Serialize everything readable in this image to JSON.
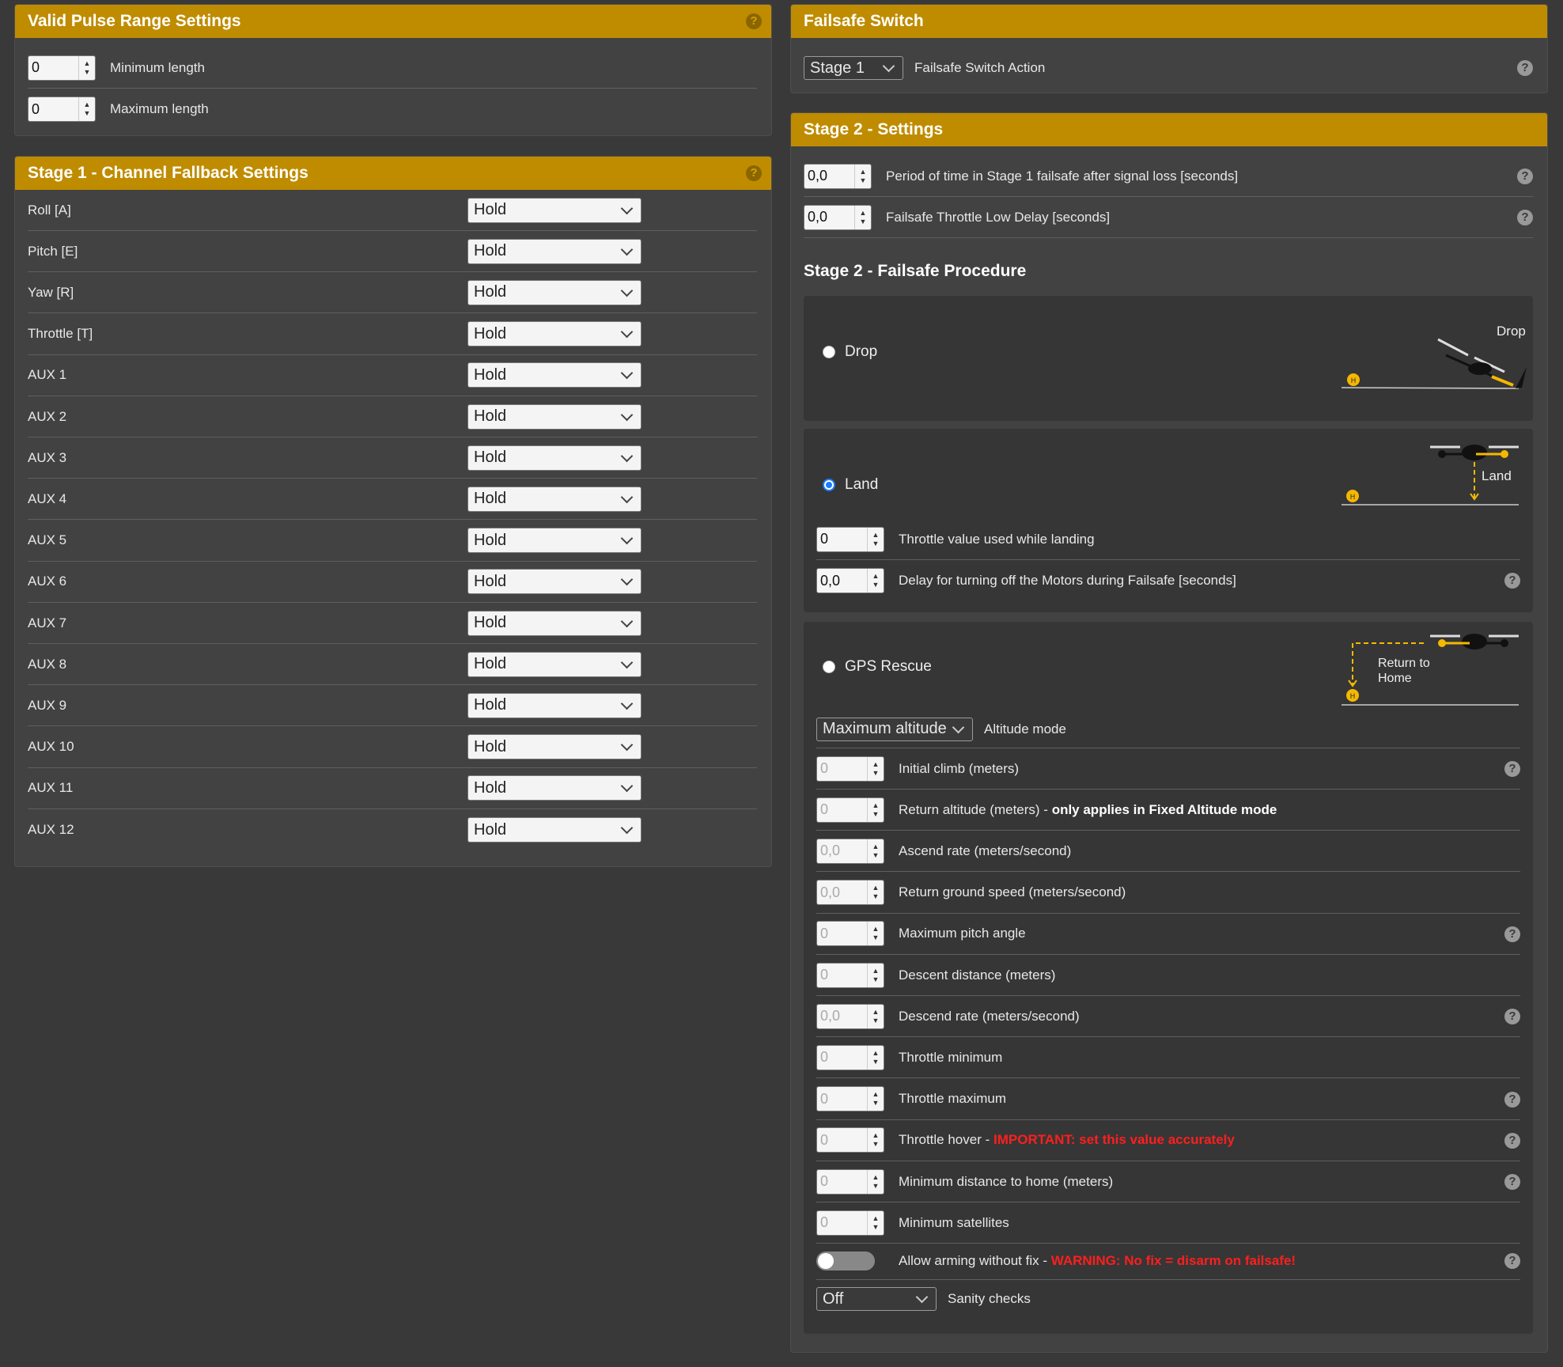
{
  "pulse_range": {
    "title": "Valid Pulse Range Settings",
    "min": {
      "value": "0",
      "label": "Minimum length"
    },
    "max": {
      "value": "0",
      "label": "Maximum length"
    }
  },
  "stage1": {
    "title": "Stage 1 - Channel Fallback Settings",
    "channels": [
      {
        "label": "Roll [A]",
        "value": "Hold"
      },
      {
        "label": "Pitch [E]",
        "value": "Hold"
      },
      {
        "label": "Yaw [R]",
        "value": "Hold"
      },
      {
        "label": "Throttle [T]",
        "value": "Hold"
      },
      {
        "label": "AUX 1",
        "value": "Hold"
      },
      {
        "label": "AUX 2",
        "value": "Hold"
      },
      {
        "label": "AUX 3",
        "value": "Hold"
      },
      {
        "label": "AUX 4",
        "value": "Hold"
      },
      {
        "label": "AUX 5",
        "value": "Hold"
      },
      {
        "label": "AUX 6",
        "value": "Hold"
      },
      {
        "label": "AUX 7",
        "value": "Hold"
      },
      {
        "label": "AUX 8",
        "value": "Hold"
      },
      {
        "label": "AUX 9",
        "value": "Hold"
      },
      {
        "label": "AUX 10",
        "value": "Hold"
      },
      {
        "label": "AUX 11",
        "value": "Hold"
      },
      {
        "label": "AUX 12",
        "value": "Hold"
      }
    ]
  },
  "failsafe_switch": {
    "title": "Failsafe Switch",
    "value": "Stage 1",
    "label": "Failsafe Switch Action"
  },
  "stage2": {
    "title": "Stage 2 - Settings",
    "period": {
      "value": "0,0",
      "label": "Period of time in Stage 1 failsafe after signal loss [seconds]"
    },
    "throttle_low_delay": {
      "value": "0,0",
      "label": "Failsafe Throttle Low Delay [seconds]"
    },
    "procedure_title": "Stage 2 - Failsafe Procedure",
    "drop": {
      "label": "Drop",
      "diagram_label": "Drop"
    },
    "land": {
      "label": "Land",
      "diagram_label": "Land",
      "throttle": {
        "value": "0",
        "label": "Throttle value used while landing"
      },
      "delay": {
        "value": "0,0",
        "label": "Delay for turning off the Motors during Failsafe [seconds]"
      }
    },
    "gps": {
      "label": "GPS Rescue",
      "diagram_label_1": "Return to",
      "diagram_label_2": "Home",
      "altitude_mode": {
        "value": "Maximum altitude",
        "label": "Altitude mode"
      },
      "rows": [
        {
          "value": "0",
          "label": "Initial climb (meters)",
          "help": true
        },
        {
          "value": "0",
          "label": "Return altitude (meters) - ",
          "bold": "only applies in Fixed Altitude mode",
          "help": false
        },
        {
          "value": "0,0",
          "label": "Ascend rate (meters/second)",
          "help": false
        },
        {
          "value": "0,0",
          "label": "Return ground speed (meters/second)",
          "help": false
        },
        {
          "value": "0",
          "label": "Maximum pitch angle",
          "help": true
        },
        {
          "value": "0",
          "label": "Descent distance (meters)",
          "help": false
        },
        {
          "value": "0,0",
          "label": "Descend rate (meters/second)",
          "help": true
        },
        {
          "value": "0",
          "label": "Throttle minimum",
          "help": false
        },
        {
          "value": "0",
          "label": "Throttle maximum",
          "help": true
        },
        {
          "value": "0",
          "label": "Throttle hover - ",
          "red": "IMPORTANT: set this value accurately",
          "help": true
        },
        {
          "value": "0",
          "label": "Minimum distance to home (meters)",
          "help": true
        },
        {
          "value": "0",
          "label": "Minimum satellites",
          "help": false
        }
      ],
      "arming": {
        "label": "Allow arming without fix - ",
        "red": "WARNING: No fix = disarm on failsafe!"
      },
      "sanity": {
        "value": "Off",
        "label": "Sanity checks"
      }
    }
  },
  "help_glyph": "?"
}
